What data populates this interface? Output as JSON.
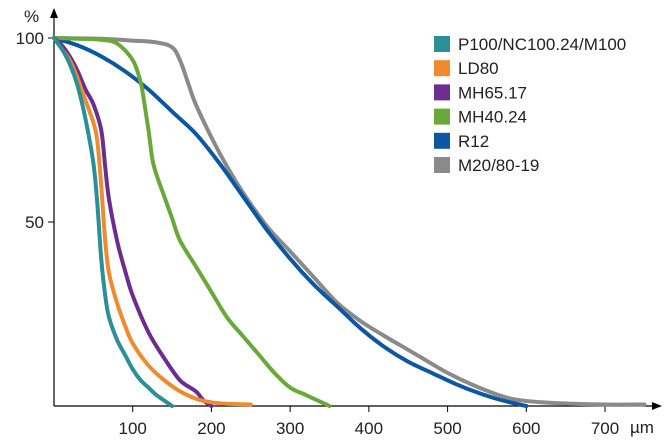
{
  "chart_data": {
    "type": "line",
    "xlabel": "µm",
    "ylabel": "%",
    "xlim": [
      0,
      780
    ],
    "ylim": [
      0,
      100
    ],
    "x_ticks": [
      100,
      200,
      300,
      400,
      500,
      600,
      700
    ],
    "y_ticks": [
      50,
      100
    ],
    "grid": false,
    "legend_position": "top-right",
    "series": [
      {
        "name": "P100/NC100.24/M100",
        "color": "#2a8f97",
        "points": [
          [
            0,
            100
          ],
          [
            10,
            97
          ],
          [
            20,
            93
          ],
          [
            30,
            87
          ],
          [
            40,
            78
          ],
          [
            50,
            66
          ],
          [
            55,
            55
          ],
          [
            60,
            40
          ],
          [
            65,
            30
          ],
          [
            70,
            24
          ],
          [
            80,
            18
          ],
          [
            90,
            14
          ],
          [
            100,
            10
          ],
          [
            110,
            7
          ],
          [
            120,
            5
          ],
          [
            130,
            3
          ],
          [
            140,
            1.5
          ],
          [
            150,
            0
          ]
        ]
      },
      {
        "name": "LD80",
        "color": "#ef8a2e",
        "points": [
          [
            0,
            100
          ],
          [
            10,
            97
          ],
          [
            20,
            94
          ],
          [
            30,
            89
          ],
          [
            40,
            83
          ],
          [
            50,
            77
          ],
          [
            55,
            72
          ],
          [
            60,
            60
          ],
          [
            65,
            45
          ],
          [
            70,
            36
          ],
          [
            80,
            28
          ],
          [
            90,
            22
          ],
          [
            100,
            17
          ],
          [
            120,
            11
          ],
          [
            140,
            7
          ],
          [
            160,
            4
          ],
          [
            180,
            2
          ],
          [
            200,
            1
          ],
          [
            220,
            0.6
          ],
          [
            250,
            0.4
          ]
        ]
      },
      {
        "name": "MH65.17",
        "color": "#6b2e8f",
        "points": [
          [
            0,
            100
          ],
          [
            10,
            98
          ],
          [
            20,
            95
          ],
          [
            30,
            91
          ],
          [
            40,
            86
          ],
          [
            50,
            82
          ],
          [
            60,
            75
          ],
          [
            65,
            65
          ],
          [
            70,
            56
          ],
          [
            80,
            45
          ],
          [
            90,
            37
          ],
          [
            100,
            30
          ],
          [
            120,
            20
          ],
          [
            140,
            13
          ],
          [
            160,
            7
          ],
          [
            180,
            4
          ],
          [
            190,
            1.5
          ],
          [
            200,
            0
          ]
        ]
      },
      {
        "name": "MH40.24",
        "color": "#6aa83a",
        "points": [
          [
            0,
            100
          ],
          [
            30,
            99.8
          ],
          [
            60,
            99.5
          ],
          [
            80,
            98.5
          ],
          [
            100,
            94
          ],
          [
            110,
            88
          ],
          [
            115,
            82
          ],
          [
            120,
            75
          ],
          [
            125,
            67
          ],
          [
            130,
            63
          ],
          [
            140,
            57
          ],
          [
            150,
            51
          ],
          [
            160,
            45
          ],
          [
            180,
            38
          ],
          [
            200,
            31
          ],
          [
            220,
            24
          ],
          [
            240,
            19
          ],
          [
            260,
            14
          ],
          [
            280,
            9
          ],
          [
            300,
            5
          ],
          [
            320,
            3
          ],
          [
            340,
            1
          ],
          [
            350,
            0
          ]
        ]
      },
      {
        "name": "R12",
        "color": "#0b57a3",
        "points": [
          [
            0,
            100
          ],
          [
            30,
            98
          ],
          [
            60,
            95
          ],
          [
            90,
            91
          ],
          [
            120,
            86
          ],
          [
            150,
            80
          ],
          [
            180,
            74
          ],
          [
            210,
            66
          ],
          [
            240,
            57
          ],
          [
            270,
            48
          ],
          [
            300,
            40
          ],
          [
            330,
            33
          ],
          [
            360,
            27
          ],
          [
            390,
            21
          ],
          [
            420,
            16
          ],
          [
            450,
            12
          ],
          [
            480,
            9
          ],
          [
            510,
            6
          ],
          [
            540,
            3.5
          ],
          [
            570,
            1.5
          ],
          [
            600,
            0
          ]
        ]
      },
      {
        "name": "M20/80-19",
        "color": "#8a8a8a",
        "points": [
          [
            0,
            100
          ],
          [
            60,
            99.8
          ],
          [
            100,
            99.3
          ],
          [
            130,
            98.8
          ],
          [
            150,
            97.5
          ],
          [
            160,
            94
          ],
          [
            170,
            88
          ],
          [
            180,
            82
          ],
          [
            200,
            73
          ],
          [
            220,
            65
          ],
          [
            240,
            58
          ],
          [
            270,
            49
          ],
          [
            300,
            42
          ],
          [
            330,
            35
          ],
          [
            360,
            28
          ],
          [
            390,
            23
          ],
          [
            420,
            19
          ],
          [
            460,
            14
          ],
          [
            500,
            9
          ],
          [
            540,
            5
          ],
          [
            580,
            2
          ],
          [
            620,
            1
          ],
          [
            660,
            0.6
          ],
          [
            700,
            0.4
          ],
          [
            750,
            0.4
          ]
        ]
      }
    ]
  }
}
